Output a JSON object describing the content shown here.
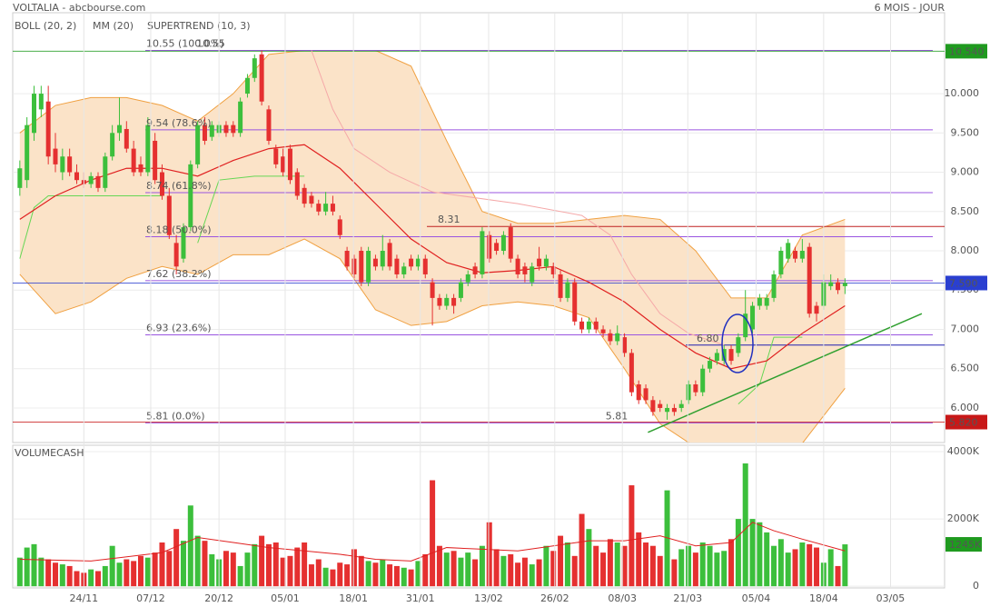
{
  "header": {
    "title": "VOLTALIA - abcbourse.com",
    "period": "6 MOIS - JOUR"
  },
  "chart_data": [
    {
      "type": "candlestick",
      "up_color": "#3cbf3c",
      "down_color": "#e53030",
      "xlim": [
        -1,
        130
      ],
      "xticks": [
        {
          "value": 9,
          "label": "24/11"
        },
        {
          "value": 18.4,
          "label": "07/12"
        },
        {
          "value": 28,
          "label": "20/12"
        },
        {
          "value": 37.3,
          "label": "05/01"
        },
        {
          "value": 46.9,
          "label": "18/01"
        },
        {
          "value": 56.3,
          "label": "31/01"
        },
        {
          "value": 65.9,
          "label": "13/02"
        },
        {
          "value": 75.2,
          "label": "26/02"
        },
        {
          "value": 84.7,
          "label": "08/03"
        },
        {
          "value": 93.9,
          "label": "21/03"
        },
        {
          "value": 103.5,
          "label": "05/04"
        },
        {
          "value": 113,
          "label": "18/04"
        },
        {
          "value": 122.4,
          "label": "03/05"
        }
      ],
      "ylim": [
        5.56,
        11.03
      ],
      "yticks": [
        {
          "value": 6,
          "label": "6.000"
        },
        {
          "value": 6.5,
          "label": "6.500"
        },
        {
          "value": 7,
          "label": "7.000"
        },
        {
          "value": 7.5,
          "label": "7.500"
        },
        {
          "value": 8,
          "label": "8.000"
        },
        {
          "value": 8.5,
          "label": "8.500"
        },
        {
          "value": 9,
          "label": "9.000"
        },
        {
          "value": 9.5,
          "label": "9.500"
        },
        {
          "value": 10,
          "label": "10.000"
        }
      ],
      "grid": true,
      "candles": [
        [
          8.8,
          9.15,
          8.7,
          9.05
        ],
        [
          8.9,
          9.7,
          8.8,
          9.6
        ],
        [
          9.5,
          10.1,
          9.4,
          10.0
        ],
        [
          9.8,
          10.1,
          9.7,
          10.0
        ],
        [
          9.9,
          10.1,
          9.1,
          9.2
        ],
        [
          9.3,
          9.5,
          9.0,
          9.1
        ],
        [
          9.0,
          9.3,
          8.9,
          9.2
        ],
        [
          9.2,
          9.3,
          8.95,
          9.0
        ],
        [
          9.0,
          9.1,
          8.85,
          8.9
        ],
        [
          8.9,
          9.0,
          8.8,
          8.85
        ],
        [
          8.85,
          9.0,
          8.8,
          8.95
        ],
        [
          8.95,
          9.0,
          8.75,
          8.8
        ],
        [
          8.8,
          9.25,
          8.75,
          9.2
        ],
        [
          9.2,
          9.6,
          9.15,
          9.5
        ],
        [
          9.5,
          9.95,
          9.4,
          9.6
        ],
        [
          9.55,
          9.65,
          9.25,
          9.3
        ],
        [
          9.3,
          9.4,
          8.95,
          9.0
        ],
        [
          9.1,
          9.2,
          8.95,
          9.0
        ],
        [
          9.0,
          9.7,
          8.95,
          9.6
        ],
        [
          9.4,
          9.5,
          8.85,
          8.9
        ],
        [
          9.0,
          9.1,
          8.65,
          8.7
        ],
        [
          8.7,
          8.8,
          8.15,
          8.2
        ],
        [
          8.1,
          8.2,
          7.7,
          7.8
        ],
        [
          7.9,
          8.35,
          7.85,
          8.3
        ],
        [
          8.3,
          9.15,
          8.25,
          9.1
        ],
        [
          9.1,
          9.65,
          9.05,
          9.6
        ],
        [
          9.6,
          9.7,
          9.35,
          9.4
        ],
        [
          9.45,
          9.65,
          9.4,
          9.6
        ],
        [
          9.5,
          9.65,
          9.45,
          9.6
        ],
        [
          9.6,
          9.65,
          9.45,
          9.5
        ],
        [
          9.6,
          9.65,
          9.45,
          9.5
        ],
        [
          9.5,
          9.95,
          9.45,
          9.9
        ],
        [
          10.0,
          10.25,
          9.95,
          10.2
        ],
        [
          10.2,
          10.5,
          10.15,
          10.45
        ],
        [
          10.5,
          10.55,
          9.85,
          9.9
        ],
        [
          9.8,
          9.85,
          9.35,
          9.4
        ],
        [
          9.3,
          9.35,
          9.05,
          9.1
        ],
        [
          9.2,
          9.3,
          8.95,
          9.0
        ],
        [
          9.3,
          9.35,
          8.85,
          8.9
        ],
        [
          9.0,
          9.05,
          8.65,
          8.7
        ],
        [
          8.8,
          8.85,
          8.55,
          8.6
        ],
        [
          8.7,
          8.75,
          8.55,
          8.6
        ],
        [
          8.6,
          8.65,
          8.45,
          8.5
        ],
        [
          8.5,
          8.75,
          8.45,
          8.6
        ],
        [
          8.6,
          8.7,
          8.45,
          8.5
        ],
        [
          8.4,
          8.45,
          8.15,
          8.2
        ],
        [
          8.0,
          8.05,
          7.75,
          7.8
        ],
        [
          7.9,
          7.95,
          7.65,
          7.7
        ],
        [
          8.0,
          8.05,
          7.55,
          7.6
        ],
        [
          7.6,
          8.05,
          7.55,
          8.0
        ],
        [
          7.9,
          7.95,
          7.75,
          7.8
        ],
        [
          7.8,
          8.2,
          7.75,
          8.0
        ],
        [
          8.1,
          8.15,
          7.75,
          7.8
        ],
        [
          7.9,
          7.95,
          7.65,
          7.7
        ],
        [
          7.7,
          7.85,
          7.65,
          7.8
        ],
        [
          7.9,
          7.95,
          7.75,
          7.8
        ],
        [
          7.8,
          7.95,
          7.75,
          7.9
        ],
        [
          7.9,
          7.95,
          7.65,
          7.7
        ],
        [
          7.6,
          7.65,
          7.05,
          7.4
        ],
        [
          7.4,
          7.45,
          7.25,
          7.3
        ],
        [
          7.3,
          7.45,
          7.25,
          7.4
        ],
        [
          7.4,
          7.45,
          7.2,
          7.3
        ],
        [
          7.4,
          7.65,
          7.35,
          7.6
        ],
        [
          7.6,
          7.75,
          7.55,
          7.7
        ],
        [
          7.8,
          7.85,
          7.65,
          7.7
        ],
        [
          7.7,
          8.3,
          7.65,
          8.25
        ],
        [
          8.2,
          8.25,
          7.85,
          7.9
        ],
        [
          8.1,
          8.15,
          7.95,
          8.0
        ],
        [
          8.0,
          8.25,
          7.95,
          8.2
        ],
        [
          8.3,
          8.35,
          7.85,
          7.9
        ],
        [
          7.9,
          7.95,
          7.65,
          7.7
        ],
        [
          7.8,
          7.85,
          7.6,
          7.7
        ],
        [
          7.6,
          7.85,
          7.55,
          7.8
        ],
        [
          7.9,
          8.05,
          7.75,
          7.8
        ],
        [
          7.8,
          7.95,
          7.75,
          7.9
        ],
        [
          7.8,
          7.85,
          7.65,
          7.7
        ],
        [
          7.7,
          7.75,
          7.35,
          7.4
        ],
        [
          7.4,
          7.65,
          7.35,
          7.6
        ],
        [
          7.6,
          7.65,
          7.05,
          7.1
        ],
        [
          7.1,
          7.15,
          6.95,
          7.0
        ],
        [
          7.0,
          7.15,
          6.95,
          7.1
        ],
        [
          7.1,
          7.15,
          6.95,
          7.0
        ],
        [
          7.0,
          7.05,
          6.9,
          6.95
        ],
        [
          6.95,
          7.0,
          6.8,
          6.85
        ],
        [
          6.85,
          7.05,
          6.8,
          6.95
        ],
        [
          6.9,
          6.95,
          6.65,
          6.7
        ],
        [
          6.7,
          6.75,
          6.15,
          6.2
        ],
        [
          6.3,
          6.35,
          6.05,
          6.1
        ],
        [
          6.25,
          6.3,
          6.05,
          6.1
        ],
        [
          6.1,
          6.15,
          5.9,
          5.95
        ],
        [
          6.05,
          6.1,
          5.95,
          6.0
        ],
        [
          5.95,
          6.05,
          5.85,
          6.0
        ],
        [
          6.0,
          6.05,
          5.9,
          5.95
        ],
        [
          6.0,
          6.1,
          5.95,
          6.05
        ],
        [
          6.1,
          6.35,
          6.05,
          6.3
        ],
        [
          6.3,
          6.35,
          6.15,
          6.2
        ],
        [
          6.2,
          6.55,
          6.15,
          6.5
        ],
        [
          6.5,
          6.65,
          6.45,
          6.6
        ],
        [
          6.6,
          6.75,
          6.55,
          6.7
        ],
        [
          6.6,
          6.8,
          6.55,
          6.75
        ],
        [
          6.75,
          6.8,
          6.55,
          6.6
        ],
        [
          6.7,
          6.95,
          6.65,
          6.9
        ],
        [
          6.9,
          7.5,
          6.85,
          7.2
        ],
        [
          7.0,
          7.35,
          6.95,
          7.3
        ],
        [
          7.3,
          7.45,
          7.25,
          7.4
        ],
        [
          7.3,
          7.45,
          7.25,
          7.4
        ],
        [
          7.4,
          7.75,
          7.35,
          7.7
        ],
        [
          7.7,
          8.05,
          7.65,
          8.0
        ],
        [
          7.9,
          8.15,
          7.85,
          8.1
        ],
        [
          8.0,
          8.05,
          7.85,
          7.9
        ],
        [
          7.9,
          8.15,
          7.85,
          8.0
        ],
        [
          8.05,
          8.1,
          7.15,
          7.2
        ],
        [
          7.3,
          7.35,
          7.1,
          7.2
        ],
        [
          7.3,
          7.7,
          7.25,
          7.6
        ],
        [
          7.55,
          7.7,
          7.5,
          7.6
        ],
        [
          7.6,
          7.65,
          7.45,
          7.5
        ],
        [
          7.55,
          7.65,
          7.45,
          7.59
        ]
      ],
      "boll": {
        "name": "BOLL (20, 2)",
        "color": "#f0a040",
        "fill": "#fbe3c8",
        "x": [
          0,
          5,
          10,
          15,
          20,
          25,
          30,
          35,
          40,
          45,
          50,
          55,
          60,
          65,
          70,
          75,
          80,
          85,
          90,
          95,
          100,
          105,
          110,
          116
        ],
        "upper": [
          9.5,
          9.85,
          9.95,
          9.95,
          9.85,
          9.65,
          10.0,
          10.5,
          10.55,
          10.55,
          10.55,
          10.35,
          9.4,
          8.5,
          8.35,
          8.35,
          8.4,
          8.45,
          8.4,
          8.0,
          7.4,
          7.4,
          8.2,
          8.4
        ],
        "lower": [
          7.7,
          7.2,
          7.35,
          7.65,
          7.8,
          7.7,
          7.95,
          7.95,
          8.15,
          7.9,
          7.25,
          7.05,
          7.1,
          7.3,
          7.35,
          7.3,
          7.15,
          6.5,
          5.8,
          5.5,
          5.5,
          5.5,
          5.55,
          6.25
        ]
      },
      "ma": {
        "name": "MM (20)",
        "color": "#e02020",
        "x": [
          0,
          5,
          10,
          15,
          20,
          25,
          30,
          35,
          40,
          45,
          50,
          55,
          60,
          65,
          70,
          75,
          80,
          85,
          90,
          95,
          100,
          105,
          110,
          116
        ],
        "values": [
          8.4,
          8.7,
          8.9,
          9.05,
          9.05,
          8.95,
          9.15,
          9.3,
          9.35,
          9.05,
          8.6,
          8.15,
          7.85,
          7.72,
          7.75,
          7.8,
          7.6,
          7.35,
          7.0,
          6.7,
          6.5,
          6.6,
          6.95,
          7.3
        ]
      },
      "supertrend": {
        "name": "SUPERTREND (10, 3)",
        "color": "#f0a0a0",
        "series": [
          {
            "color": "#66d655",
            "x": [
              0,
              2,
              4,
              20,
              21,
              25,
              28,
              33,
              40,
              41,
              101,
              104,
              106,
              110
            ],
            "values": [
              7.9,
              8.55,
              8.7,
              8.7,
              null,
              8.1,
              8.9,
              8.95,
              8.95,
              null,
              6.05,
              6.3,
              6.9,
              6.9
            ]
          },
          {
            "color": "#f5a8a8",
            "x": [
              41,
              44,
              47,
              52,
              58,
              70,
              79,
              83,
              86,
              90,
              94,
              99
            ],
            "values": [
              10.55,
              9.8,
              9.3,
              9.0,
              8.75,
              8.6,
              8.45,
              8.2,
              7.7,
              7.2,
              6.95,
              6.8
            ]
          }
        ]
      },
      "fib_color": "#9a55e0",
      "fib_levels": [
        {
          "value": 10.55,
          "label": "10.55 (100.0%)"
        },
        {
          "value": 9.54,
          "label": "9.54 (78.6%)"
        },
        {
          "value": 8.74,
          "label": "8.74 (61.8%)"
        },
        {
          "value": 8.18,
          "label": "8.18 (50.0%)"
        },
        {
          "value": 7.62,
          "label": "7.62 (38.2%)"
        },
        {
          "value": 6.93,
          "label": "6.93 (23.6%)"
        },
        {
          "value": 5.81,
          "label": "5.81 (0.0%)"
        }
      ],
      "levels": [
        {
          "value": 8.31,
          "label": "8.31",
          "color": "#c02020"
        },
        {
          "value": 6.8,
          "label": "6.80",
          "color": "#2020b0"
        }
      ],
      "high_label": {
        "value": 10.55,
        "label": "10.55",
        "color": "#d02020"
      },
      "low_label": {
        "value": 5.81,
        "label": "5.81",
        "color": "#208020"
      },
      "trendline": {
        "color": "#30a030",
        "x": [
          88.3,
          126.8
        ],
        "values": [
          5.69,
          7.2
        ]
      },
      "price_markers": [
        {
          "value": 10.54,
          "label": "10.540",
          "color": "#1f9a1f"
        },
        {
          "value": 7.59,
          "label": "7.590",
          "color": "#2a3fd0"
        },
        {
          "value": 5.82,
          "label": "5.820",
          "color": "#c81818"
        }
      ]
    },
    {
      "type": "bar",
      "title": "VOLUMECASH",
      "ylim": [
        -50,
        4190
      ],
      "yticks": [
        0,
        {
          "value": 2000,
          "label": "2000K"
        },
        {
          "value": 4000,
          "label": "4000K"
        }
      ],
      "values": [
        850,
        1150,
        1250,
        850,
        800,
        700,
        650,
        600,
        450,
        400,
        500,
        450,
        600,
        1200,
        700,
        800,
        750,
        900,
        850,
        1000,
        1300,
        1050,
        1700,
        1350,
        2400,
        1500,
        1350,
        950,
        800,
        1050,
        1000,
        600,
        1000,
        1250,
        1500,
        1250,
        1300,
        850,
        900,
        1150,
        1300,
        650,
        800,
        550,
        500,
        700,
        650,
        1100,
        900,
        750,
        700,
        800,
        650,
        600,
        550,
        500,
        750,
        950,
        3150,
        1200,
        1000,
        1050,
        850,
        1000,
        800,
        1200,
        1900,
        1100,
        900,
        950,
        700,
        850,
        650,
        800,
        1200,
        1050,
        1500,
        1300,
        900,
        2150,
        1700,
        1200,
        1000,
        1400,
        1300,
        1200,
        3000,
        1600,
        1300,
        1200,
        900,
        2850,
        800,
        1100,
        1200,
        1000,
        1300,
        1200,
        1000,
        1050,
        1400,
        2000,
        3650,
        2000,
        1900,
        1600,
        1200,
        1400,
        1000,
        1100,
        1300,
        1250,
        1150,
        700,
        1100,
        600,
        1245
      ],
      "ma": {
        "color": "#e02020",
        "x": [
          0,
          10,
          20,
          25,
          30,
          35,
          40,
          45,
          50,
          55,
          60,
          65,
          70,
          75,
          80,
          85,
          90,
          95,
          100,
          103,
          106,
          110,
          116
        ],
        "values": [
          800,
          750,
          1000,
          1450,
          1300,
          1150,
          1050,
          950,
          800,
          750,
          1150,
          1100,
          1050,
          1200,
          1350,
          1350,
          1500,
          1200,
          1300,
          1900,
          1650,
          1400,
          1050
        ]
      },
      "last_label": {
        "value": 1245,
        "label": "1245K",
        "color": "#1f9a1f"
      }
    }
  ]
}
